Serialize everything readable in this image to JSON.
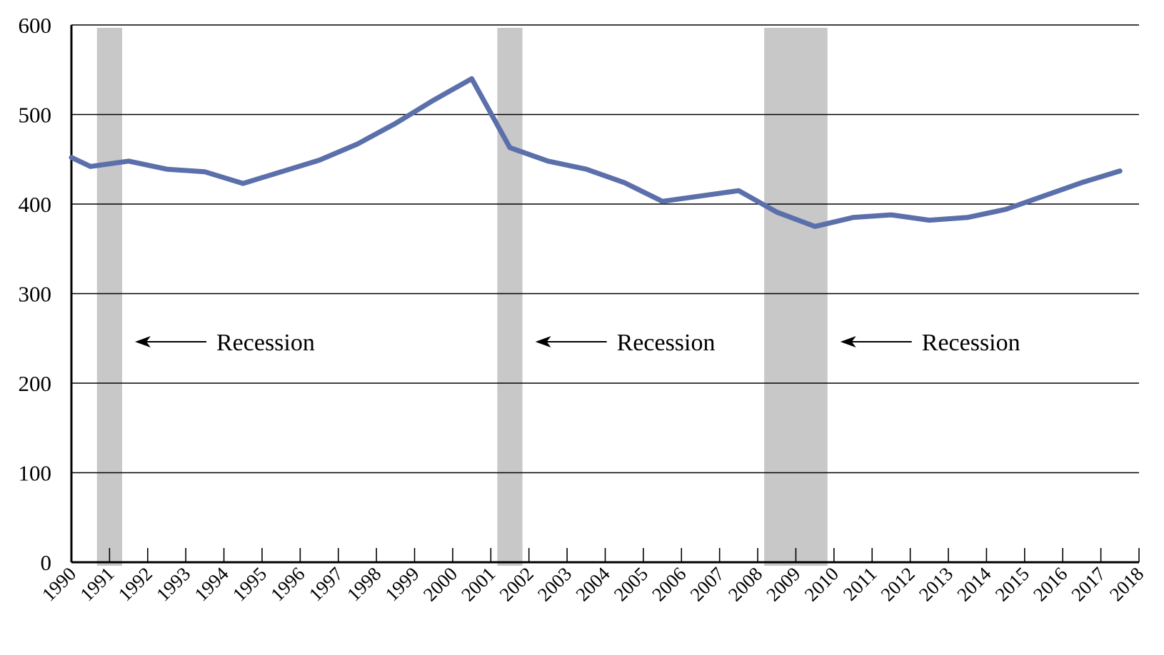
{
  "chart_data": {
    "type": "line",
    "x": [
      "1990",
      "1991",
      "1992",
      "1993",
      "1994",
      "1995",
      "1996",
      "1997",
      "1998",
      "1999",
      "2000",
      "2001",
      "2002",
      "2003",
      "2004",
      "2005",
      "2006",
      "2007",
      "2008",
      "2009",
      "2010",
      "2011",
      "2012",
      "2013",
      "2014",
      "2015",
      "2016",
      "2017",
      "2018"
    ],
    "series": [
      {
        "color": "#5b6fab",
        "points": [
          {
            "x": 1990.0,
            "y": 452
          },
          {
            "x": 1990.5,
            "y": 442
          },
          {
            "x": 1991.5,
            "y": 448
          },
          {
            "x": 1992.5,
            "y": 439
          },
          {
            "x": 1993.5,
            "y": 436
          },
          {
            "x": 1994.5,
            "y": 423
          },
          {
            "x": 1995.5,
            "y": 436
          },
          {
            "x": 1996.5,
            "y": 449
          },
          {
            "x": 1997.5,
            "y": 467
          },
          {
            "x": 1998.5,
            "y": 490
          },
          {
            "x": 1999.5,
            "y": 516
          },
          {
            "x": 2000.5,
            "y": 540
          },
          {
            "x": 2001.5,
            "y": 463
          },
          {
            "x": 2002.5,
            "y": 448
          },
          {
            "x": 2003.5,
            "y": 439
          },
          {
            "x": 2004.5,
            "y": 424
          },
          {
            "x": 2005.5,
            "y": 403
          },
          {
            "x": 2006.5,
            "y": 409
          },
          {
            "x": 2007.5,
            "y": 415
          },
          {
            "x": 2008.5,
            "y": 391
          },
          {
            "x": 2009.5,
            "y": 375
          },
          {
            "x": 2010.5,
            "y": 385
          },
          {
            "x": 2011.5,
            "y": 388
          },
          {
            "x": 2012.5,
            "y": 382
          },
          {
            "x": 2013.5,
            "y": 385
          },
          {
            "x": 2014.5,
            "y": 394
          },
          {
            "x": 2015.5,
            "y": 409
          },
          {
            "x": 2016.5,
            "y": 424
          },
          {
            "x": 2017.5,
            "y": 437
          }
        ]
      }
    ],
    "ylim": [
      0,
      600
    ],
    "yticks": [
      0,
      100,
      200,
      300,
      400,
      500,
      600
    ],
    "xlim": [
      1990,
      2018
    ],
    "grid": "horizontal",
    "recessions": [
      {
        "start": 1990.67,
        "end": 1991.33,
        "label": "Recession"
      },
      {
        "start": 2001.17,
        "end": 2001.83,
        "label": "Recession"
      },
      {
        "start": 2008.17,
        "end": 2009.83,
        "label": "Recession"
      }
    ],
    "colors": {
      "line": "#5b6fab",
      "recession": "#c8c8c8",
      "grid": "#000000"
    }
  }
}
